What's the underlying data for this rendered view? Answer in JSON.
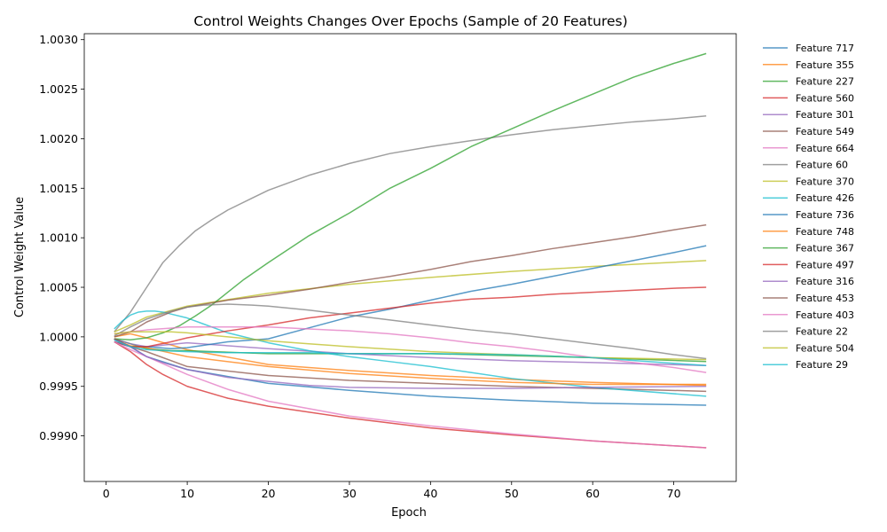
{
  "chart_data": {
    "type": "line",
    "title": "Control Weights Changes Over Epochs (Sample of 20 Features)",
    "xlabel": "Epoch",
    "ylabel": "Control Weight Value",
    "xlim": [
      -2.7,
      77.7
    ],
    "ylim": [
      0.99854,
      1.00306
    ],
    "xticks": [
      0,
      10,
      20,
      30,
      40,
      50,
      60,
      70
    ],
    "yticks": [
      0.999,
      0.9995,
      1.0,
      1.0005,
      1.001,
      1.0015,
      1.002,
      1.0025,
      1.003
    ],
    "ytick_labels": [
      "0.9990",
      "0.9995",
      "1.0000",
      "1.0005",
      "1.0010",
      "1.0015",
      "1.0020",
      "1.0025",
      "1.0030"
    ],
    "grid": false,
    "legend_position": "right-outside",
    "series": [
      {
        "name": "Feature 717",
        "color": "#1f77b4",
        "x": [
          1,
          3,
          5,
          10,
          20,
          30,
          40,
          50,
          60,
          74
        ],
        "y": [
          0.99995,
          0.9999,
          0.9998,
          0.99967,
          0.99953,
          0.99946,
          0.9994,
          0.99936,
          0.99933,
          0.99931
        ]
      },
      {
        "name": "Feature 355",
        "color": "#ff7f0e",
        "x": [
          1,
          3,
          5,
          10,
          20,
          30,
          40,
          50,
          60,
          74
        ],
        "y": [
          1.0,
          1.00003,
          0.99999,
          0.99987,
          0.99972,
          0.99966,
          0.99961,
          0.99957,
          0.99954,
          0.99951
        ]
      },
      {
        "name": "Feature 227",
        "color": "#2ca02c",
        "x": [
          1,
          3,
          5,
          8,
          10,
          20,
          30,
          40,
          50,
          60,
          74
        ],
        "y": [
          0.99998,
          0.99993,
          0.99988,
          0.99986,
          0.99986,
          0.99983,
          0.99983,
          0.99983,
          0.99981,
          0.99979,
          0.99975
        ]
      },
      {
        "name": "Feature 560",
        "color": "#d62728",
        "x": [
          1,
          3,
          5,
          7,
          10,
          15,
          20,
          30,
          40,
          50,
          60,
          74
        ],
        "y": [
          0.99995,
          0.99985,
          0.99972,
          0.99962,
          0.9995,
          0.99938,
          0.9993,
          0.99918,
          0.99908,
          0.99901,
          0.99895,
          0.99888
        ]
      },
      {
        "name": "Feature 301",
        "color": "#9467bd",
        "x": [
          1,
          3,
          5,
          10,
          20,
          30,
          40,
          50,
          60,
          74
        ],
        "y": [
          0.99998,
          0.99993,
          0.9999,
          0.99994,
          0.99988,
          0.99983,
          0.99979,
          0.99976,
          0.99974,
          0.99971
        ]
      },
      {
        "name": "Feature 549",
        "color": "#8c564b",
        "x": [
          1,
          3,
          5,
          10,
          20,
          30,
          40,
          50,
          60,
          74
        ],
        "y": [
          0.99995,
          0.9999,
          0.99985,
          0.9997,
          0.99961,
          0.99956,
          0.99953,
          0.9995,
          0.99948,
          0.99945
        ]
      },
      {
        "name": "Feature 664",
        "color": "#e377c2",
        "x": [
          1,
          3,
          5,
          10,
          15,
          20,
          30,
          40,
          50,
          60,
          74
        ],
        "y": [
          0.99995,
          0.99987,
          0.9998,
          0.99962,
          0.99947,
          0.99935,
          0.9992,
          0.9991,
          0.99902,
          0.99895,
          0.99888
        ]
      },
      {
        "name": "Feature 60",
        "color": "#7f7f7f",
        "x": [
          1,
          3,
          5,
          7,
          9,
          11,
          13,
          15,
          18,
          20,
          25,
          30,
          35,
          40,
          45,
          50,
          55,
          60,
          65,
          70,
          74
        ],
        "y": [
          1.00005,
          1.00025,
          1.0005,
          1.00075,
          1.00092,
          1.00107,
          1.00118,
          1.00128,
          1.0014,
          1.00148,
          1.00163,
          1.00175,
          1.00185,
          1.00192,
          1.00198,
          1.00204,
          1.00209,
          1.00213,
          1.00217,
          1.0022,
          1.00223
        ]
      },
      {
        "name": "Feature 370",
        "color": "#bcbd22",
        "x": [
          1,
          3,
          5,
          10,
          20,
          30,
          40,
          50,
          60,
          74
        ],
        "y": [
          1.00005,
          1.00012,
          1.0002,
          1.00031,
          1.00044,
          1.00053,
          1.0006,
          1.00066,
          1.00071,
          1.00077
        ]
      },
      {
        "name": "Feature 426",
        "color": "#17becf",
        "x": [
          1,
          2,
          3,
          4,
          5,
          6,
          7,
          8,
          10,
          12,
          15,
          20,
          25,
          30,
          35,
          40,
          45,
          50,
          60,
          74
        ],
        "y": [
          1.00008,
          1.00016,
          1.00022,
          1.00025,
          1.00026,
          1.00026,
          1.00025,
          1.00023,
          1.00019,
          1.00013,
          1.00004,
          0.99994,
          0.99986,
          0.9998,
          0.99975,
          0.9997,
          0.99964,
          0.99958,
          0.99949,
          0.9994
        ]
      },
      {
        "name": "Feature 736",
        "color": "#1f77b4",
        "x": [
          1,
          3,
          5,
          8,
          10,
          15,
          20,
          25,
          30,
          35,
          40,
          45,
          50,
          55,
          60,
          65,
          70,
          74
        ],
        "y": [
          0.99998,
          0.9999,
          0.9999,
          0.99988,
          0.99989,
          0.99995,
          0.99998,
          1.00009,
          1.0002,
          1.00028,
          1.00037,
          1.00046,
          1.00053,
          1.00061,
          1.00069,
          1.00077,
          1.00085,
          1.00092
        ]
      },
      {
        "name": "Feature 748",
        "color": "#ff7f0e",
        "x": [
          1,
          3,
          5,
          10,
          20,
          30,
          40,
          50,
          60,
          74
        ],
        "y": [
          0.99997,
          0.99991,
          0.99989,
          0.9998,
          0.9997,
          0.99963,
          0.99958,
          0.99954,
          0.99952,
          0.99952
        ]
      },
      {
        "name": "Feature 367",
        "color": "#2ca02c",
        "x": [
          1,
          3,
          5,
          7,
          9,
          11,
          13,
          15,
          17,
          20,
          25,
          30,
          35,
          40,
          45,
          50,
          55,
          60,
          65,
          70,
          74
        ],
        "y": [
          0.99998,
          0.99997,
          0.99999,
          1.00004,
          1.00011,
          1.00021,
          1.00032,
          1.00045,
          1.00058,
          1.00075,
          1.00102,
          1.00125,
          1.0015,
          1.0017,
          1.00192,
          1.0021,
          1.00228,
          1.00245,
          1.00262,
          1.00276,
          1.00286
        ]
      },
      {
        "name": "Feature 497",
        "color": "#d62728",
        "x": [
          1,
          3,
          5,
          8,
          10,
          15,
          20,
          25,
          30,
          35,
          40,
          45,
          50,
          55,
          60,
          65,
          70,
          74
        ],
        "y": [
          0.99998,
          0.9999,
          0.9999,
          0.99995,
          0.99999,
          1.00006,
          1.00012,
          1.00019,
          1.00024,
          1.00029,
          1.00034,
          1.00038,
          1.0004,
          1.00043,
          1.00045,
          1.00047,
          1.00049,
          1.0005
        ]
      },
      {
        "name": "Feature 316",
        "color": "#9467bd",
        "x": [
          1,
          3,
          5,
          7,
          10,
          15,
          20,
          25,
          30,
          40,
          50,
          60,
          74
        ],
        "y": [
          0.99997,
          0.9999,
          0.9998,
          0.99974,
          0.99967,
          0.99959,
          0.99955,
          0.99951,
          0.99949,
          0.99948,
          0.99948,
          0.99949,
          0.9995
        ]
      },
      {
        "name": "Feature 453",
        "color": "#8c564b",
        "x": [
          1,
          3,
          5,
          8,
          10,
          15,
          20,
          25,
          30,
          35,
          40,
          45,
          50,
          55,
          60,
          65,
          70,
          74
        ],
        "y": [
          1.0,
          1.00005,
          1.00015,
          1.00025,
          1.0003,
          1.00037,
          1.00042,
          1.00048,
          1.00055,
          1.00061,
          1.00068,
          1.00076,
          1.00082,
          1.00089,
          1.00095,
          1.00101,
          1.00108,
          1.00113
        ]
      },
      {
        "name": "Feature 403",
        "color": "#e377c2",
        "x": [
          1,
          3,
          5,
          10,
          15,
          20,
          25,
          30,
          35,
          40,
          45,
          50,
          55,
          60,
          65,
          70,
          74
        ],
        "y": [
          1.00003,
          1.00005,
          1.00007,
          1.0001,
          1.0001,
          1.0001,
          1.00008,
          1.00006,
          1.00003,
          0.99999,
          0.99994,
          0.9999,
          0.99985,
          0.99979,
          0.99974,
          0.99969,
          0.99964
        ]
      },
      {
        "name": "Feature 22",
        "color": "#7f7f7f",
        "x": [
          1,
          3,
          5,
          8,
          10,
          12,
          15,
          18,
          20,
          25,
          30,
          35,
          40,
          45,
          50,
          55,
          60,
          65,
          70,
          74
        ],
        "y": [
          1.00001,
          1.0001,
          1.00018,
          1.00026,
          1.0003,
          1.00032,
          1.00033,
          1.00032,
          1.00031,
          1.00027,
          1.00022,
          1.00017,
          1.00012,
          1.00007,
          1.00003,
          0.99998,
          0.99993,
          0.99988,
          0.99982,
          0.99978
        ]
      },
      {
        "name": "Feature 504",
        "color": "#bcbd22",
        "x": [
          1,
          3,
          5,
          8,
          10,
          15,
          20,
          25,
          30,
          40,
          50,
          60,
          74
        ],
        "y": [
          1.00003,
          1.00005,
          1.00005,
          1.00005,
          1.00004,
          1.0,
          0.99996,
          0.99993,
          0.9999,
          0.99985,
          0.99982,
          0.99979,
          0.99977
        ]
      },
      {
        "name": "Feature 29",
        "color": "#17becf",
        "x": [
          1,
          3,
          5,
          7,
          10,
          15,
          20,
          25,
          30,
          40,
          50,
          60,
          74
        ],
        "y": [
          0.99997,
          0.9999,
          0.99987,
          0.99986,
          0.99985,
          0.99984,
          0.99984,
          0.99984,
          0.99983,
          0.99983,
          0.99982,
          0.99979,
          0.99971
        ]
      }
    ]
  }
}
